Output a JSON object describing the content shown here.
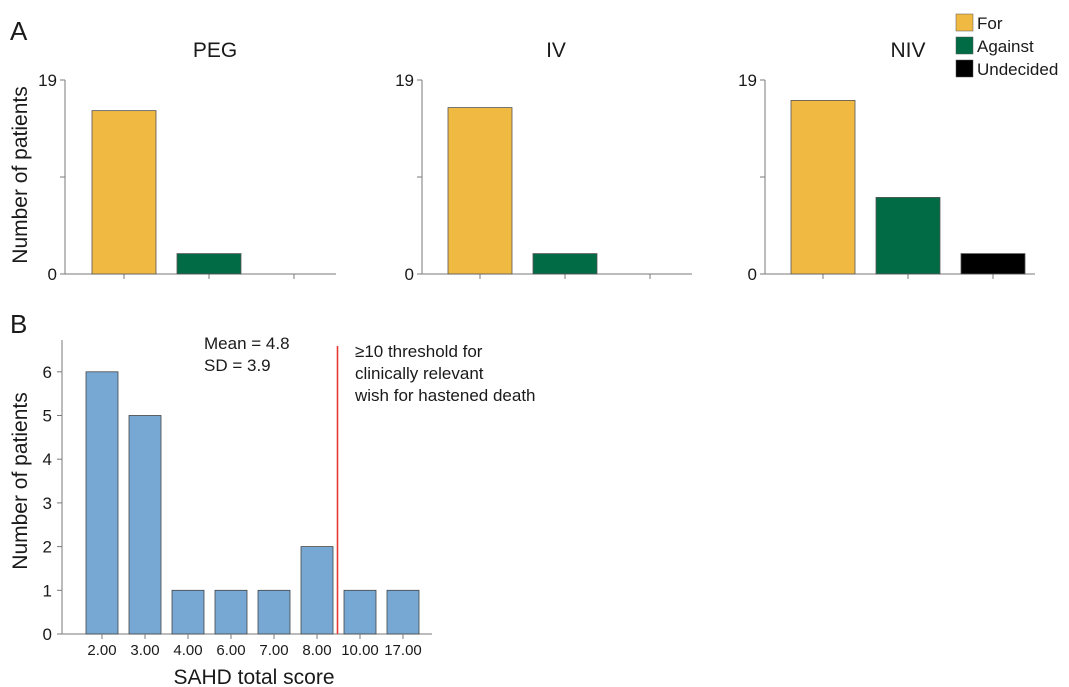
{
  "panel_a": {
    "letter": "A",
    "ylabel": "Number of patients",
    "legend": [
      {
        "label": "For",
        "color": "#F0B942"
      },
      {
        "label": "Against",
        "color": "#006B45"
      },
      {
        "label": "Undecided",
        "color": "#000000"
      }
    ]
  },
  "panel_b": {
    "letter": "B",
    "stats_mean": "Mean = 4.8",
    "stats_sd": "SD = 3.9",
    "threshold_line1": "≥10 threshold for",
    "threshold_line2": "clinically relevant",
    "threshold_line3": "wish for hastened death",
    "threshold_color": "#E53935"
  },
  "chart_data": [
    {
      "type": "bar",
      "title": "PEG",
      "ylabel": "Number of patients",
      "ylim": [
        0,
        19
      ],
      "yticks": [
        "0",
        "19"
      ],
      "categories": [
        "For",
        "Against",
        "Undecided"
      ],
      "values": [
        16,
        2,
        0
      ],
      "colors": [
        "#F0B942",
        "#006B45",
        "#000000"
      ]
    },
    {
      "type": "bar",
      "title": "IV",
      "ylim": [
        0,
        19
      ],
      "yticks": [
        "0",
        "19"
      ],
      "categories": [
        "For",
        "Against",
        "Undecided"
      ],
      "values": [
        16.3,
        2,
        0
      ],
      "colors": [
        "#F0B942",
        "#006B45",
        "#000000"
      ]
    },
    {
      "type": "bar",
      "title": "NIV",
      "ylim": [
        0,
        19
      ],
      "yticks": [
        "0",
        "19"
      ],
      "categories": [
        "For",
        "Against",
        "Undecided"
      ],
      "values": [
        17,
        7.5,
        2
      ],
      "colors": [
        "#F0B942",
        "#006B45",
        "#000000"
      ]
    },
    {
      "type": "bar",
      "xlabel": "SAHD total score",
      "ylabel": "Number of patients",
      "ylim": [
        0,
        6
      ],
      "yticks": [
        "0",
        "1",
        "2",
        "3",
        "4",
        "5",
        "6"
      ],
      "categories": [
        "2.00",
        "3.00",
        "4.00",
        "6.00",
        "7.00",
        "8.00",
        "10.00",
        "17.00"
      ],
      "values": [
        6,
        5,
        1,
        1,
        1,
        2,
        1,
        1
      ],
      "color": "#77A8D4",
      "threshold_between": [
        5,
        6
      ]
    }
  ]
}
